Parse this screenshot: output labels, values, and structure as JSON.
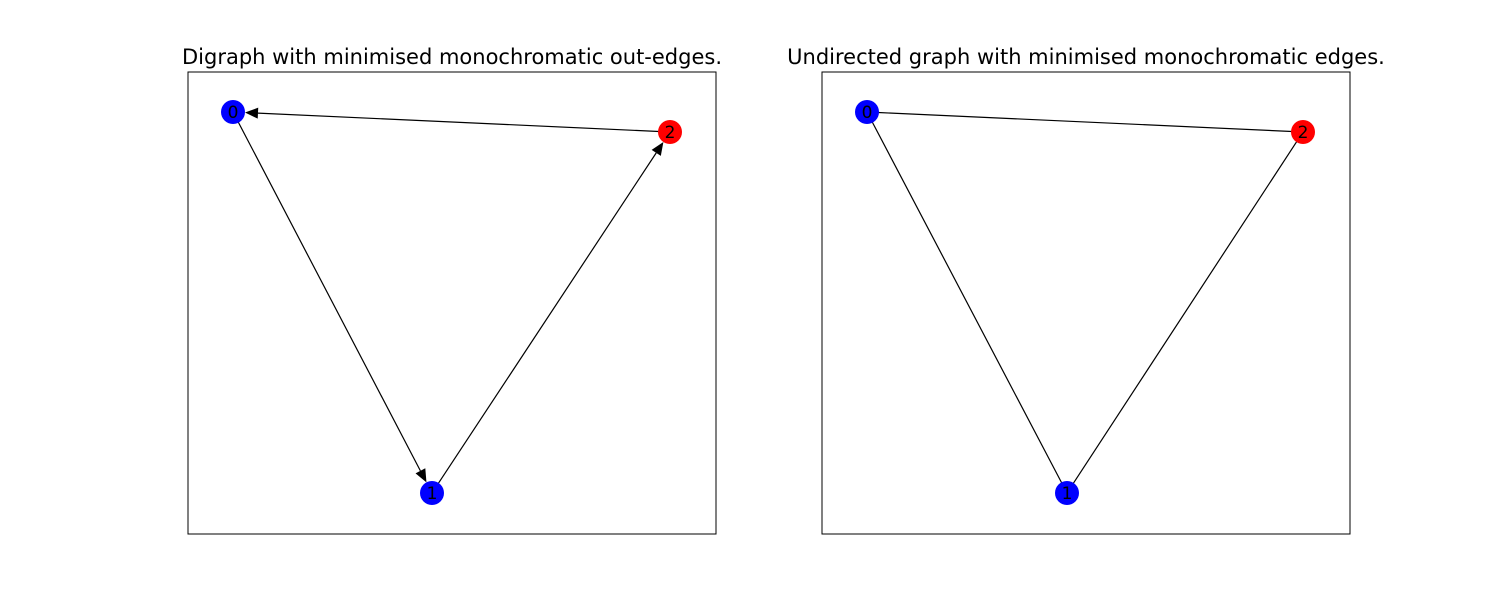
{
  "panels": [
    {
      "id": "digraph",
      "title": "Digraph with minimised monochromatic out-edges.",
      "directed": true,
      "nodes": [
        {
          "id": "0",
          "label": "0",
          "color": "#0000ff"
        },
        {
          "id": "1",
          "label": "1",
          "color": "#0000ff"
        },
        {
          "id": "2",
          "label": "2",
          "color": "#ff0000"
        }
      ],
      "edges": [
        {
          "source": "0",
          "target": "1"
        },
        {
          "source": "1",
          "target": "2"
        },
        {
          "source": "2",
          "target": "0"
        }
      ]
    },
    {
      "id": "undirected",
      "title": "Undirected graph with minimised monochromatic edges.",
      "directed": false,
      "nodes": [
        {
          "id": "0",
          "label": "0",
          "color": "#0000ff"
        },
        {
          "id": "1",
          "label": "1",
          "color": "#0000ff"
        },
        {
          "id": "2",
          "label": "2",
          "color": "#ff0000"
        }
      ],
      "edges": [
        {
          "source": "0",
          "target": "1"
        },
        {
          "source": "1",
          "target": "2"
        },
        {
          "source": "2",
          "target": "0"
        }
      ]
    }
  ]
}
